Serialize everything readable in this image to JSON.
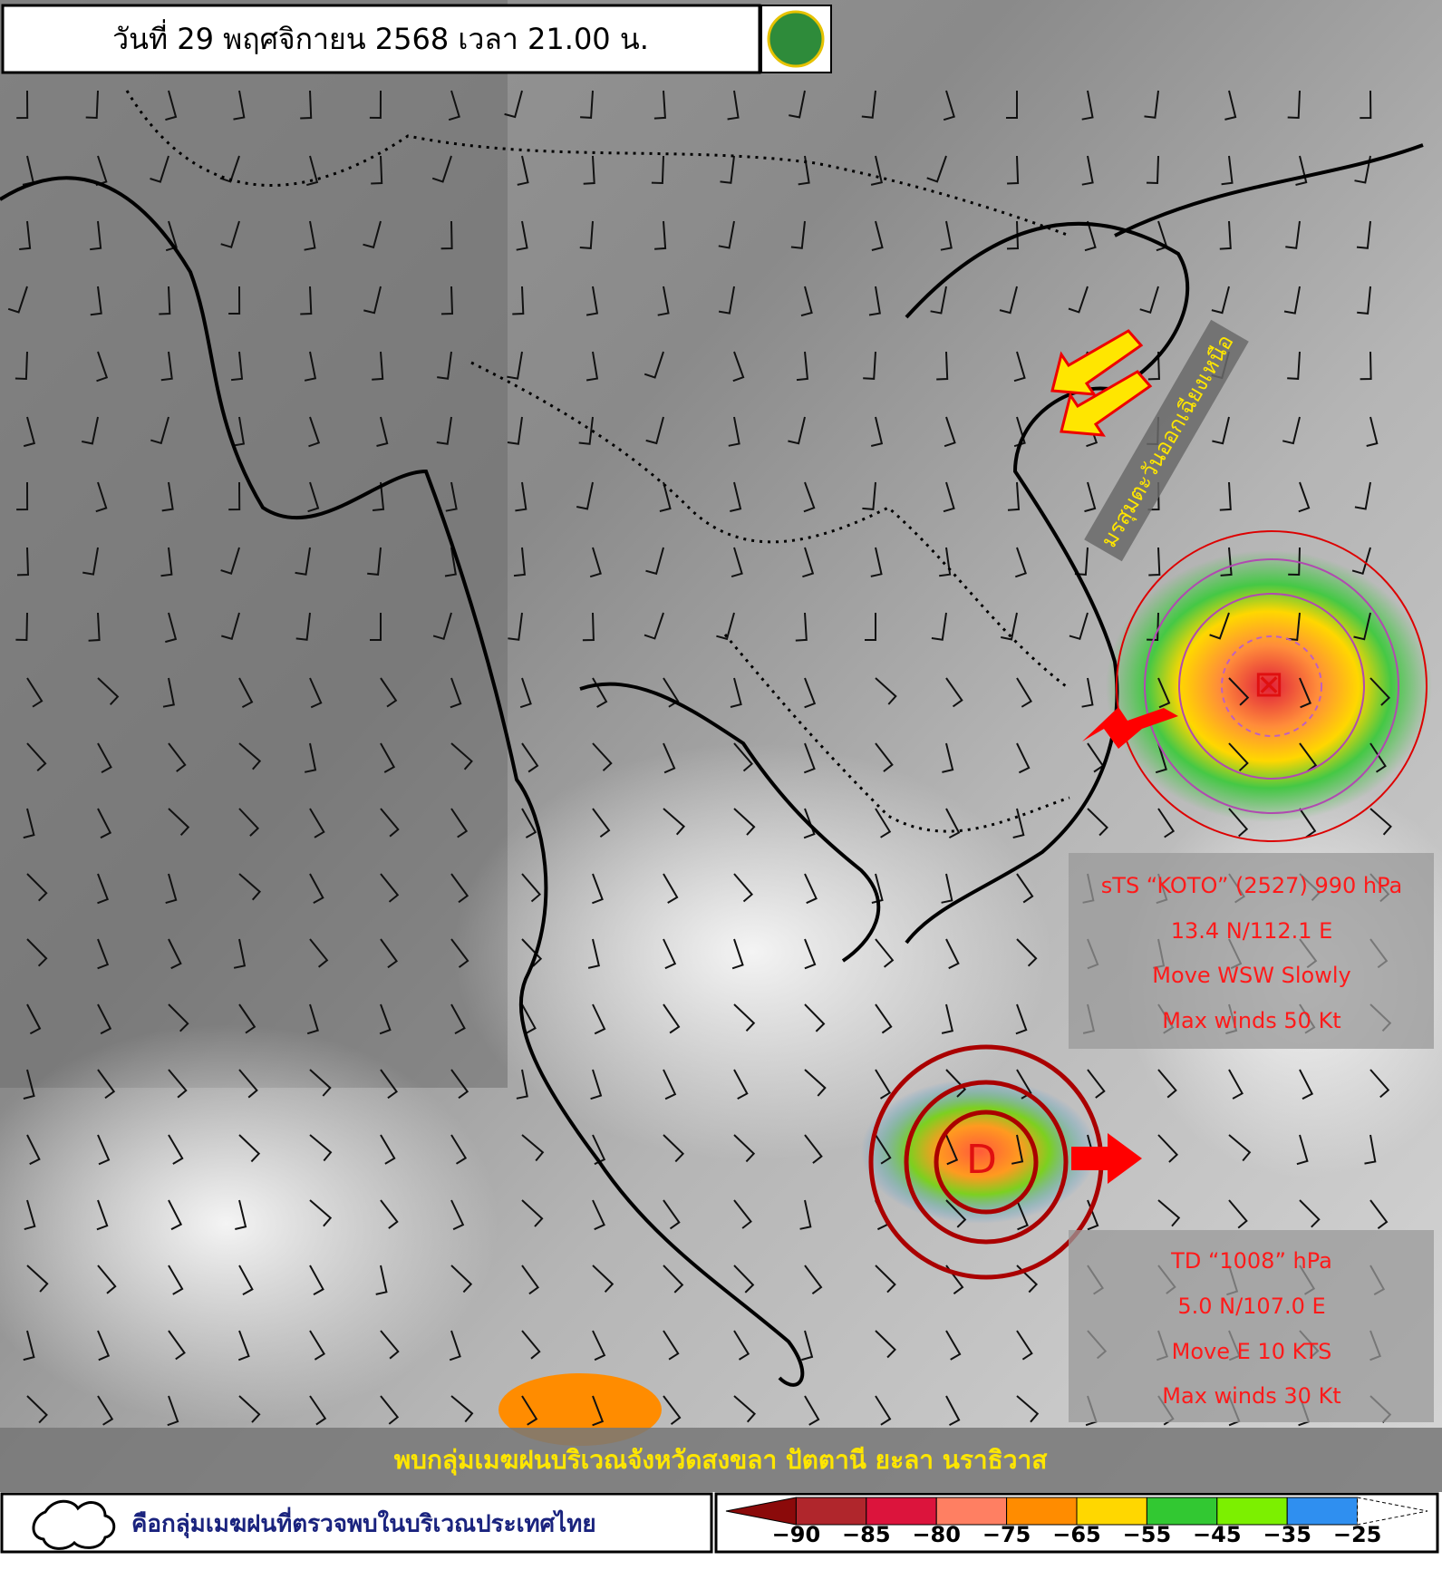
{
  "header": {
    "title": "วันที่ 29 พฤศจิกายน 2568 เวลา 21.00 น."
  },
  "annotations": {
    "monsoon": "มรสุมตะวันออกเฉียงเหนือ"
  },
  "storms": [
    {
      "lines": [
        "sTS “KOTO” (2527) 990 hPa",
        "13.4 N/112.1 E",
        "Move WSW Slowly",
        "Max winds 50 Kt"
      ]
    },
    {
      "lines": [
        "TD “1008” hPa",
        "5.0 N/107.0 E",
        "Move E 10 KTS",
        "Max winds 30 Kt"
      ]
    }
  ],
  "banner": "พบกลุ่มเมฆฝนบริเวณจังหวัดสงขลา ปัตตานี ยะลา นราธิวาส",
  "legend": {
    "text": "คือกลุ่มเมฆฝนที่ตรวจพบในบริเวณประเทศไทย"
  },
  "colorbar": {
    "colors": [
      "#8b0a0a",
      "#b0262c",
      "#dc143c",
      "#ff7f62",
      "#ff8c00",
      "#ffd700",
      "#32c832",
      "#7cf000",
      "#2f8ff0",
      "#ffffff"
    ],
    "labels": [
      "−90",
      "−85",
      "−80",
      "−75",
      "−65",
      "−55",
      "−45",
      "−35",
      "−25"
    ]
  }
}
